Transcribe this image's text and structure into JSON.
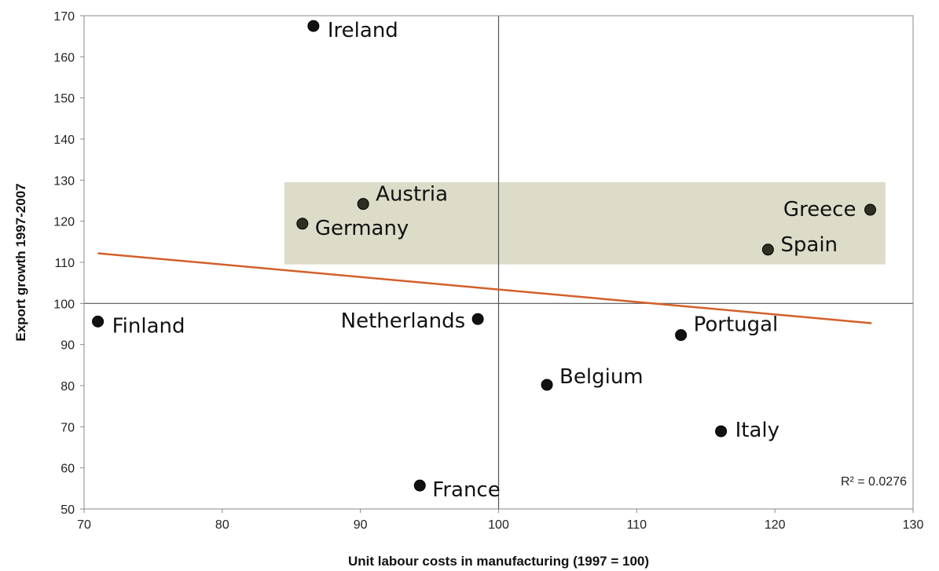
{
  "chart_data": {
    "type": "scatter",
    "xlabel": "Unit labour costs in manufacturing (1997 = 100)",
    "ylabel": "Export growth 1997-2007",
    "xlim": [
      70,
      130
    ],
    "ylim": [
      50,
      170
    ],
    "x_ticks": [
      "70",
      "80",
      "90",
      "100",
      "110",
      "120",
      "130"
    ],
    "y_ticks": [
      "50",
      "60",
      "70",
      "80",
      "90",
      "100",
      "110",
      "120",
      "130",
      "140",
      "150",
      "160",
      "170"
    ],
    "grid": false,
    "reference_lines": {
      "x": 100,
      "y": 100
    },
    "highlight_band": {
      "x": [
        84.5,
        128
      ],
      "y": [
        109.5,
        129.5
      ],
      "color": "#dcdcc8"
    },
    "trendline": {
      "x": [
        71,
        127
      ],
      "y": [
        112.2,
        95.2
      ],
      "color": "#d2602a"
    },
    "r_squared_label": "R² = 0.0276",
    "points": [
      {
        "label": "Ireland",
        "x": 86.6,
        "y": 167.5
      },
      {
        "label": "Austria",
        "x": 90.2,
        "y": 124.2
      },
      {
        "label": "Germany",
        "x": 85.8,
        "y": 119.4
      },
      {
        "label": "Greece",
        "x": 126.9,
        "y": 122.8
      },
      {
        "label": "Spain",
        "x": 119.5,
        "y": 113.1
      },
      {
        "label": "Finland",
        "x": 71.0,
        "y": 95.6
      },
      {
        "label": "Netherlands",
        "x": 98.5,
        "y": 96.2
      },
      {
        "label": "Portugal",
        "x": 113.2,
        "y": 92.3
      },
      {
        "label": "Belgium",
        "x": 103.5,
        "y": 80.2
      },
      {
        "label": "Italy",
        "x": 116.1,
        "y": 68.9
      },
      {
        "label": "France",
        "x": 94.3,
        "y": 55.7
      }
    ]
  }
}
